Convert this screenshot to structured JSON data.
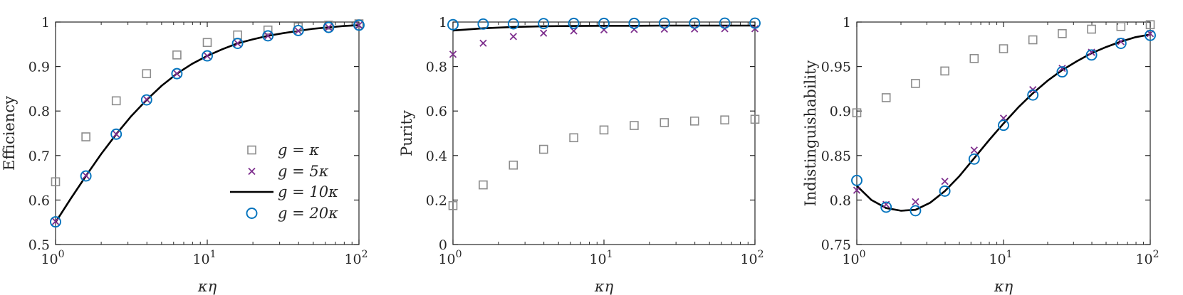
{
  "colors": {
    "g_kappa": "#8c8c8c",
    "g_5kappa": "#7e2f8e",
    "g_10kappa": "#000000",
    "g_20kappa": "#0072bd",
    "axis": "#262626"
  },
  "legend": {
    "placement": "bottom-right of first panel",
    "entries": [
      {
        "series": "g_kappa",
        "label": "g = κ",
        "marker": "square"
      },
      {
        "series": "g_5kappa",
        "label": "g = 5κ",
        "marker": "cross"
      },
      {
        "series": "g_10kappa",
        "label": "g = 10κ",
        "marker": "line"
      },
      {
        "series": "g_20kappa",
        "label": "g = 20κ",
        "marker": "circle"
      }
    ]
  },
  "chart_data": [
    {
      "type": "line",
      "xlabel": "κη",
      "ylabel": "Efficiency",
      "xscale": "log",
      "xlim": [
        1,
        100
      ],
      "ylim": [
        0.5,
        1
      ],
      "xticks": [
        {
          "v": 1,
          "base": "10",
          "exp": "0"
        },
        {
          "v": 10,
          "base": "10",
          "exp": "1"
        },
        {
          "v": 100,
          "base": "10",
          "exp": "2"
        }
      ],
      "yticks": [
        {
          "v": 0.5,
          "label": "0.5"
        },
        {
          "v": 0.6,
          "label": "0.6"
        },
        {
          "v": 0.7,
          "label": "0.7"
        },
        {
          "v": 0.8,
          "label": "0.8"
        },
        {
          "v": 0.9,
          "label": "0.9"
        },
        {
          "v": 1,
          "label": "1"
        }
      ],
      "grid": false,
      "x": [
        1,
        1.585,
        2.512,
        3.981,
        6.31,
        10,
        15.85,
        25.12,
        39.81,
        63.1,
        100
      ],
      "series": [
        {
          "key": "g_kappa",
          "name": "g = κ",
          "marker": "square",
          "values": [
            0.641,
            0.742,
            0.823,
            0.884,
            0.926,
            0.954,
            0.971,
            0.982,
            0.989,
            0.993,
            0.996
          ]
        },
        {
          "key": "g_5kappa",
          "name": "g = 5κ",
          "marker": "cross",
          "values": [
            0.552,
            0.655,
            0.748,
            0.826,
            0.884,
            0.924,
            0.952,
            0.969,
            0.98,
            0.988,
            0.993
          ]
        },
        {
          "key": "g_20kappa",
          "name": "g = 20κ",
          "marker": "circle",
          "values": [
            0.551,
            0.654,
            0.748,
            0.825,
            0.884,
            0.924,
            0.952,
            0.969,
            0.981,
            0.988,
            0.993
          ]
        }
      ],
      "curve": {
        "key": "g_10kappa",
        "name": "g = 10κ",
        "x": [
          1,
          1.259,
          1.585,
          1.995,
          2.512,
          3.162,
          3.981,
          5.012,
          6.31,
          7.943,
          10,
          12.59,
          15.85,
          19.95,
          25.12,
          31.62,
          39.81,
          50.12,
          63.1,
          79.43,
          100
        ],
        "values": [
          0.55,
          0.603,
          0.654,
          0.703,
          0.748,
          0.789,
          0.825,
          0.857,
          0.884,
          0.906,
          0.924,
          0.939,
          0.952,
          0.961,
          0.969,
          0.975,
          0.98,
          0.985,
          0.988,
          0.991,
          0.993
        ]
      }
    },
    {
      "type": "line",
      "xlabel": "κη",
      "ylabel": "Purity",
      "xscale": "log",
      "xlim": [
        1,
        100
      ],
      "ylim": [
        0,
        1
      ],
      "xticks": [
        {
          "v": 1,
          "base": "10",
          "exp": "0"
        },
        {
          "v": 10,
          "base": "10",
          "exp": "1"
        },
        {
          "v": 100,
          "base": "10",
          "exp": "2"
        }
      ],
      "yticks": [
        {
          "v": 0,
          "label": "0"
        },
        {
          "v": 0.2,
          "label": "0.2"
        },
        {
          "v": 0.4,
          "label": "0.4"
        },
        {
          "v": 0.6,
          "label": "0.6"
        },
        {
          "v": 0.8,
          "label": "0.8"
        },
        {
          "v": 1,
          "label": "1"
        }
      ],
      "grid": false,
      "x": [
        1,
        1.585,
        2.512,
        3.981,
        6.31,
        10,
        15.85,
        25.12,
        39.81,
        63.1,
        100
      ],
      "series": [
        {
          "key": "g_kappa",
          "name": "g = κ",
          "marker": "square",
          "values": [
            0.175,
            0.268,
            0.357,
            0.428,
            0.48,
            0.515,
            0.535,
            0.548,
            0.555,
            0.56,
            0.563
          ]
        },
        {
          "key": "g_5kappa",
          "name": "g = 5κ",
          "marker": "cross",
          "values": [
            0.855,
            0.905,
            0.935,
            0.95,
            0.96,
            0.965,
            0.967,
            0.968,
            0.969,
            0.97,
            0.97
          ]
        },
        {
          "key": "g_20kappa",
          "name": "g = 20κ",
          "marker": "circle",
          "values": [
            0.988,
            0.991,
            0.992,
            0.993,
            0.994,
            0.994,
            0.994,
            0.995,
            0.995,
            0.995,
            0.995
          ]
        }
      ],
      "curve": {
        "key": "g_10kappa",
        "name": "g = 10κ",
        "x": [
          1,
          1.585,
          2.512,
          3.981,
          6.31,
          10,
          15.85,
          25.12,
          39.81,
          63.1,
          100
        ],
        "values": [
          0.962,
          0.972,
          0.978,
          0.981,
          0.982,
          0.983,
          0.983,
          0.984,
          0.984,
          0.984,
          0.984
        ]
      }
    },
    {
      "type": "line",
      "xlabel": "κη",
      "ylabel": "Indistinguishability",
      "xscale": "log",
      "xlim": [
        1,
        100
      ],
      "ylim": [
        0.75,
        1
      ],
      "xticks": [
        {
          "v": 1,
          "base": "10",
          "exp": "0"
        },
        {
          "v": 10,
          "base": "10",
          "exp": "1"
        },
        {
          "v": 100,
          "base": "10",
          "exp": "2"
        }
      ],
      "yticks": [
        {
          "v": 0.75,
          "label": "0.75"
        },
        {
          "v": 0.8,
          "label": "0.8"
        },
        {
          "v": 0.85,
          "label": "0.85"
        },
        {
          "v": 0.9,
          "label": "0.9"
        },
        {
          "v": 0.95,
          "label": "0.95"
        },
        {
          "v": 1,
          "label": "1"
        }
      ],
      "grid": false,
      "x": [
        1,
        1.585,
        2.512,
        3.981,
        6.31,
        10,
        15.85,
        25.12,
        39.81,
        63.1,
        100
      ],
      "series": [
        {
          "key": "g_kappa",
          "name": "g = κ",
          "marker": "square",
          "values": [
            0.898,
            0.915,
            0.931,
            0.945,
            0.959,
            0.97,
            0.98,
            0.987,
            0.992,
            0.995,
            0.997
          ]
        },
        {
          "key": "g_5kappa",
          "name": "g = 5κ",
          "marker": "cross",
          "values": [
            0.811,
            0.795,
            0.798,
            0.821,
            0.856,
            0.892,
            0.924,
            0.948,
            0.966,
            0.978,
            0.987
          ]
        },
        {
          "key": "g_20kappa",
          "name": "g = 20κ",
          "marker": "circle",
          "values": [
            0.822,
            0.792,
            0.788,
            0.81,
            0.846,
            0.884,
            0.918,
            0.944,
            0.963,
            0.976,
            0.985
          ]
        }
      ],
      "curve": {
        "key": "g_10kappa",
        "name": "g = 10κ",
        "x": [
          1,
          1.259,
          1.585,
          1.995,
          2.512,
          3.162,
          3.981,
          5.012,
          6.31,
          7.943,
          10,
          12.59,
          15.85,
          19.95,
          25.12,
          31.62,
          39.81,
          50.12,
          63.1,
          79.43,
          100
        ],
        "values": [
          0.816,
          0.8,
          0.791,
          0.788,
          0.789,
          0.797,
          0.81,
          0.827,
          0.847,
          0.867,
          0.886,
          0.904,
          0.92,
          0.934,
          0.946,
          0.956,
          0.965,
          0.972,
          0.978,
          0.983,
          0.986
        ]
      }
    }
  ]
}
